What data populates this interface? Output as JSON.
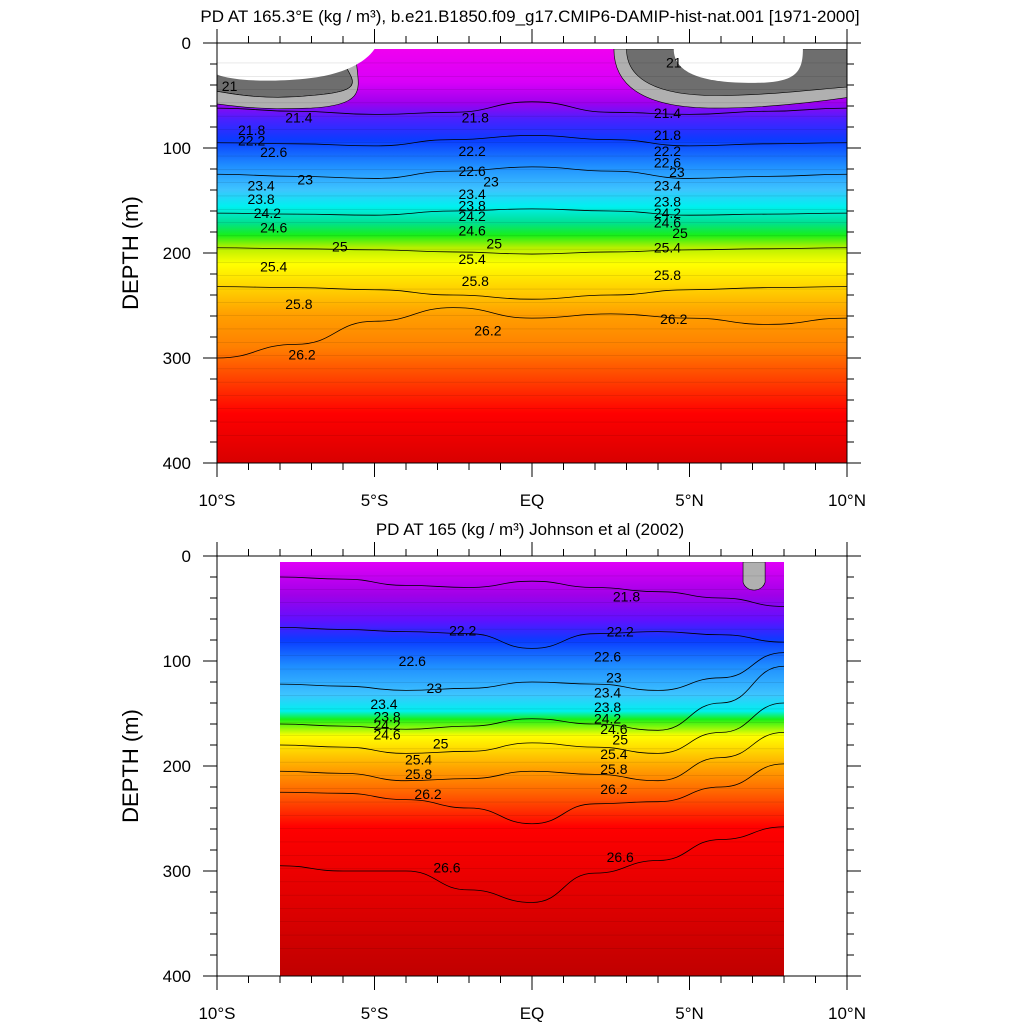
{
  "chart_data": [
    {
      "type": "heatmap",
      "title": "PD AT 165.3°E (kg / m³), b.e21.B1850.f09_g17.CMIP6-DAMIP-hist-nat.001 [1971-2000]",
      "xlabel": "",
      "ylabel": "DEPTH (m)",
      "xlim": [
        -10,
        10
      ],
      "ylim": [
        400,
        0
      ],
      "x_tick_values": [
        -10,
        -5,
        0,
        5,
        10
      ],
      "x_tick_labels": [
        "10°S",
        "5°S",
        "EQ",
        "5°N",
        "10°N"
      ],
      "y_tick_values": [
        0,
        100,
        200,
        300,
        400
      ],
      "y_tick_labels": [
        "0",
        "100",
        "200",
        "300",
        "400"
      ],
      "x_coverage": [
        -10,
        10
      ],
      "levels": [
        21.0,
        21.2,
        21.4,
        21.6,
        21.8,
        22.0,
        22.2,
        22.4,
        22.6,
        22.8,
        23.0,
        23.2,
        23.4,
        23.6,
        23.8,
        24.0,
        24.2,
        24.4,
        24.6,
        24.8,
        25.0,
        25.2,
        25.4,
        25.6,
        25.8,
        26.0,
        26.2,
        26.4,
        26.6,
        26.8
      ],
      "depth_profile": {
        "x": [
          -10,
          -7.5,
          -5,
          -2.5,
          0,
          2.5,
          5,
          7.5,
          10
        ],
        "isopycnal_depth_21_4": [
          62,
          65,
          68,
          66,
          56,
          66,
          68,
          65,
          62
        ],
        "isopycnal_depth_22_2": [
          95,
          96,
          98,
          92,
          88,
          92,
          98,
          96,
          95
        ],
        "isopycnal_depth_23_0": [
          125,
          127,
          129,
          122,
          118,
          122,
          129,
          127,
          125
        ],
        "isopycnal_depth_24_2": [
          162,
          163,
          164,
          160,
          158,
          160,
          164,
          163,
          162
        ],
        "isopycnal_depth_25_0": [
          195,
          196,
          197,
          199,
          201,
          199,
          197,
          196,
          195
        ],
        "isopycnal_depth_25_8": [
          232,
          233,
          235,
          240,
          244,
          240,
          235,
          233,
          232
        ],
        "isopycnal_depth_26_2": [
          300,
          287,
          265,
          252,
          262,
          258,
          262,
          268,
          262
        ]
      },
      "contour_labels": [
        {
          "text": "21",
          "x": -9.6,
          "y": 42
        },
        {
          "text": "21.4",
          "x": -7.4,
          "y": 72
        },
        {
          "text": "21.8",
          "x": -8.9,
          "y": 84
        },
        {
          "text": "22.2",
          "x": -8.9,
          "y": 94
        },
        {
          "text": "22.6",
          "x": -8.2,
          "y": 105
        },
        {
          "text": "23",
          "x": -7.2,
          "y": 131
        },
        {
          "text": "23.4",
          "x": -8.6,
          "y": 137
        },
        {
          "text": "23.8",
          "x": -8.6,
          "y": 150
        },
        {
          "text": "24.2",
          "x": -8.4,
          "y": 163
        },
        {
          "text": "24.6",
          "x": -8.2,
          "y": 177
        },
        {
          "text": "25",
          "x": -6.1,
          "y": 195
        },
        {
          "text": "25.4",
          "x": -8.2,
          "y": 214
        },
        {
          "text": "25.8",
          "x": -7.4,
          "y": 250
        },
        {
          "text": "26.2",
          "x": -7.3,
          "y": 298
        },
        {
          "text": "21.8",
          "x": -1.8,
          "y": 72
        },
        {
          "text": "22.2",
          "x": -1.9,
          "y": 104
        },
        {
          "text": "22.6",
          "x": -1.9,
          "y": 123
        },
        {
          "text": "23",
          "x": -1.3,
          "y": 133
        },
        {
          "text": "23.4",
          "x": -1.9,
          "y": 145
        },
        {
          "text": "23.8",
          "x": -1.9,
          "y": 156
        },
        {
          "text": "24.2",
          "x": -1.9,
          "y": 166
        },
        {
          "text": "24.6",
          "x": -1.9,
          "y": 180
        },
        {
          "text": "25",
          "x": -1.2,
          "y": 192
        },
        {
          "text": "25.4",
          "x": -1.9,
          "y": 207
        },
        {
          "text": "25.8",
          "x": -1.8,
          "y": 228
        },
        {
          "text": "26.2",
          "x": -1.4,
          "y": 275
        },
        {
          "text": "21",
          "x": 4.5,
          "y": 20
        },
        {
          "text": "21.4",
          "x": 4.3,
          "y": 68
        },
        {
          "text": "21.8",
          "x": 4.3,
          "y": 89
        },
        {
          "text": "22.2",
          "x": 4.3,
          "y": 104
        },
        {
          "text": "22.6",
          "x": 4.3,
          "y": 115
        },
        {
          "text": "23",
          "x": 4.6,
          "y": 124
        },
        {
          "text": "23.4",
          "x": 4.3,
          "y": 137
        },
        {
          "text": "23.8",
          "x": 4.3,
          "y": 152
        },
        {
          "text": "24.2",
          "x": 4.3,
          "y": 163
        },
        {
          "text": "24.6",
          "x": 4.3,
          "y": 172
        },
        {
          "text": "25",
          "x": 4.7,
          "y": 182
        },
        {
          "text": "25.4",
          "x": 4.3,
          "y": 196
        },
        {
          "text": "25.8",
          "x": 4.3,
          "y": 222
        },
        {
          "text": "26.2",
          "x": 4.5,
          "y": 264
        }
      ]
    },
    {
      "type": "heatmap",
      "title": "PD AT 165 (kg / m³) Johnson et al (2002)",
      "xlabel": "",
      "ylabel": "DEPTH (m)",
      "xlim": [
        -10,
        10
      ],
      "ylim": [
        400,
        0
      ],
      "x_tick_values": [
        -10,
        -5,
        0,
        5,
        10
      ],
      "x_tick_labels": [
        "10°S",
        "5°S",
        "EQ",
        "5°N",
        "10°N"
      ],
      "y_tick_values": [
        0,
        100,
        200,
        300,
        400
      ],
      "y_tick_labels": [
        "0",
        "100",
        "200",
        "300",
        "400"
      ],
      "x_coverage": [
        -8,
        8
      ],
      "levels": [
        21.0,
        21.2,
        21.4,
        21.6,
        21.8,
        22.0,
        22.2,
        22.4,
        22.6,
        22.8,
        23.0,
        23.2,
        23.4,
        23.6,
        23.8,
        24.0,
        24.2,
        24.4,
        24.6,
        24.8,
        25.0,
        25.2,
        25.4,
        25.6,
        25.8,
        26.0,
        26.2,
        26.4,
        26.6,
        26.8
      ],
      "depth_profile": {
        "x": [
          -8,
          -6,
          -4,
          -2,
          0,
          2,
          4,
          6,
          8
        ],
        "isopycnal_depth_21_8": [
          20,
          22,
          28,
          30,
          24,
          30,
          34,
          40,
          48
        ],
        "isopycnal_depth_22_2": [
          68,
          70,
          72,
          74,
          88,
          74,
          72,
          75,
          82
        ],
        "isopycnal_depth_23_0": [
          122,
          124,
          128,
          126,
          120,
          122,
          128,
          116,
          92
        ],
        "isopycnal_depth_24_2": [
          160,
          162,
          165,
          162,
          155,
          160,
          166,
          140,
          105
        ],
        "isopycnal_depth_25_0": [
          180,
          182,
          188,
          186,
          178,
          182,
          188,
          168,
          140
        ],
        "isopycnal_depth_25_8": [
          205,
          207,
          214,
          212,
          205,
          208,
          214,
          192,
          168
        ],
        "isopycnal_depth_26_2": [
          225,
          226,
          232,
          240,
          255,
          236,
          234,
          220,
          198
        ],
        "isopycnal_depth_26_6": [
          295,
          300,
          300,
          318,
          330,
          302,
          290,
          270,
          258
        ]
      },
      "contour_labels": [
        {
          "text": "21.8",
          "x": 3.0,
          "y": 40
        },
        {
          "text": "22.2",
          "x": -2.2,
          "y": 72
        },
        {
          "text": "22.2",
          "x": 2.8,
          "y": 73
        },
        {
          "text": "22.6",
          "x": -3.8,
          "y": 101
        },
        {
          "text": "22.6",
          "x": 2.4,
          "y": 97
        },
        {
          "text": "23",
          "x": -3.1,
          "y": 127
        },
        {
          "text": "23",
          "x": 2.6,
          "y": 117
        },
        {
          "text": "23.4",
          "x": -4.7,
          "y": 142
        },
        {
          "text": "23.4",
          "x": 2.4,
          "y": 131
        },
        {
          "text": "23.8",
          "x": -4.6,
          "y": 154
        },
        {
          "text": "23.8",
          "x": 2.4,
          "y": 145
        },
        {
          "text": "24.2",
          "x": -4.6,
          "y": 162
        },
        {
          "text": "24.2",
          "x": 2.4,
          "y": 156
        },
        {
          "text": "24.6",
          "x": -4.6,
          "y": 171
        },
        {
          "text": "24.6",
          "x": 2.6,
          "y": 166
        },
        {
          "text": "25",
          "x": -2.9,
          "y": 180
        },
        {
          "text": "25",
          "x": 2.8,
          "y": 176
        },
        {
          "text": "25.4",
          "x": -3.6,
          "y": 195
        },
        {
          "text": "25.4",
          "x": 2.6,
          "y": 190
        },
        {
          "text": "25.8",
          "x": -3.6,
          "y": 209
        },
        {
          "text": "25.8",
          "x": 2.6,
          "y": 204
        },
        {
          "text": "26.2",
          "x": -3.3,
          "y": 228
        },
        {
          "text": "26.2",
          "x": 2.6,
          "y": 223
        },
        {
          "text": "26.6",
          "x": -2.7,
          "y": 298
        },
        {
          "text": "26.6",
          "x": 2.8,
          "y": 288
        }
      ]
    }
  ]
}
